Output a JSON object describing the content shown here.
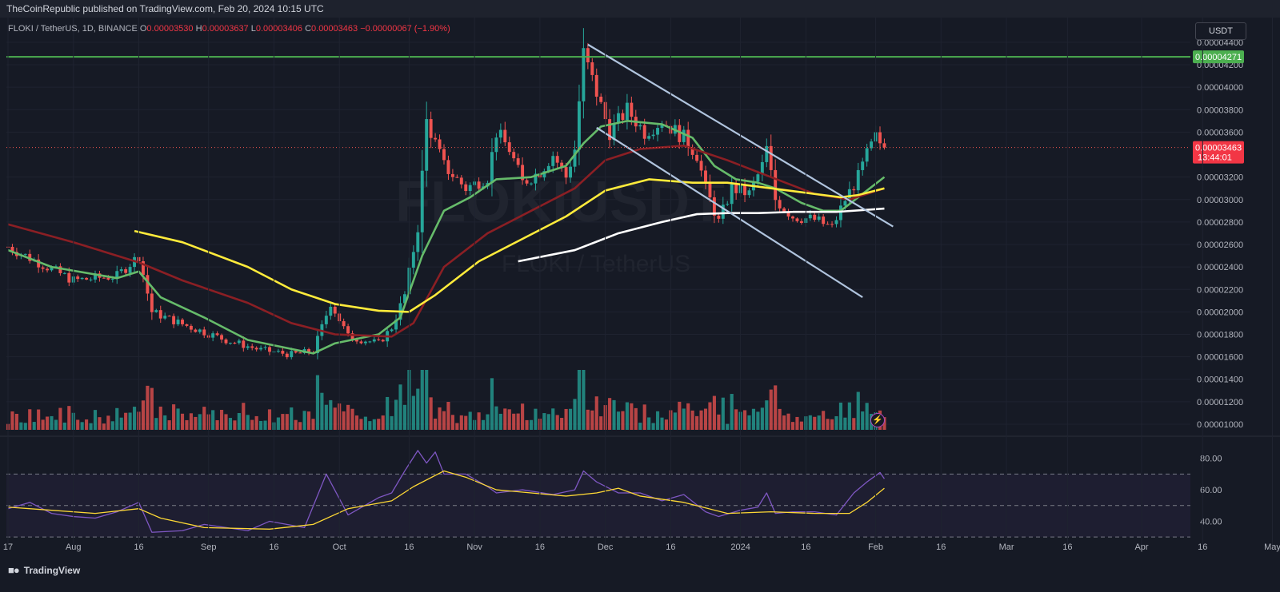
{
  "header": {
    "publisher_text": "TheCoinRepublic published on TradingView.com, Feb 20, 2024 10:15 UTC"
  },
  "symbol": {
    "pair": "FLOKI / TetherUS, 1D, BINANCE",
    "o_label": "O",
    "o_value": "0.00003530",
    "h_label": "H",
    "h_value": "0.00003637",
    "l_label": "L",
    "l_value": "0.00003406",
    "c_label": "C",
    "c_value": "0.00003463",
    "change": "−0.00000067 (−1.90%)"
  },
  "watermark": {
    "symbol": "FLOKIUSDT",
    "name": "FLOKI / TetherUS"
  },
  "currency": "USDT",
  "footer": {
    "logo_text": "TradingView"
  },
  "colors": {
    "background": "#161a25",
    "up": "#26a69a",
    "down": "#ef5350",
    "ema_fast": "#66bb6a",
    "ema_mid": "#8b1f24",
    "ma_yellow": "#ffeb3b",
    "ma_white": "#ffffff",
    "resistance": "#4caf50",
    "channel": "#b0c4de",
    "rsi": "#7e57c2",
    "rsi_ma": "#fdd835"
  },
  "chart_data": [
    {
      "type": "candlestick",
      "title": "FLOKI / TetherUS, 1D, BINANCE",
      "x_ticks": [
        "17",
        "Aug",
        "16",
        "Sep",
        "16",
        "Oct",
        "16",
        "Nov",
        "16",
        "Dec",
        "16",
        "2024",
        "16",
        "Feb",
        "16",
        "Mar",
        "16",
        "Apr",
        "16",
        "May"
      ],
      "y_ticks": [
        "0.00004400",
        "0.00004200",
        "0.00004000",
        "0.00003800",
        "0.00003600",
        "0.00003200",
        "0.00003000",
        "0.00002800",
        "0.00002600",
        "0.00002400",
        "0.00002200",
        "0.00002000",
        "0.00001800",
        "0.00001600",
        "0.00001400",
        "0.00001200",
        "0.00001000"
      ],
      "y_range": [
        9.5e-06,
        4.62e-05
      ],
      "price_tags": {
        "resistance": "0.00004271",
        "last": "0.00003463",
        "countdown": "13:44:01"
      },
      "resistance_level": 4.271e-05,
      "last_price": 3.463e-05,
      "close_path": [
        [
          0,
          2.58e-05
        ],
        [
          8,
          2.42e-05
        ],
        [
          15,
          2.28e-05
        ],
        [
          25,
          2.32e-05
        ],
        [
          30,
          2.5e-05
        ],
        [
          33,
          2e-05
        ],
        [
          40,
          1.89e-05
        ],
        [
          50,
          1.75e-05
        ],
        [
          58,
          1.66e-05
        ],
        [
          65,
          1.62e-05
        ],
        [
          70,
          1.65e-05
        ],
        [
          74,
          2.08e-05
        ],
        [
          78,
          1.78e-05
        ],
        [
          85,
          1.72e-05
        ],
        [
          88,
          1.86e-05
        ],
        [
          91,
          2.15e-05
        ],
        [
          94,
          2.75e-05
        ],
        [
          96,
          3.7e-05
        ],
        [
          98,
          3.5e-05
        ],
        [
          100,
          3.3e-05
        ],
        [
          105,
          3.1e-05
        ],
        [
          110,
          3.2e-05
        ],
        [
          112,
          3.6e-05
        ],
        [
          115,
          3.45e-05
        ],
        [
          118,
          3.15e-05
        ],
        [
          122,
          3.25e-05
        ],
        [
          125,
          3.4e-05
        ],
        [
          128,
          3.2e-05
        ],
        [
          130,
          3.45e-05
        ],
        [
          132,
          4.3e-05
        ],
        [
          135,
          3.95e-05
        ],
        [
          138,
          3.6e-05
        ],
        [
          142,
          3.8e-05
        ],
        [
          146,
          3.6e-05
        ],
        [
          150,
          3.7e-05
        ],
        [
          155,
          3.55e-05
        ],
        [
          158,
          3.4e-05
        ],
        [
          160,
          3.1e-05
        ],
        [
          163,
          2.8e-05
        ],
        [
          166,
          3.1e-05
        ],
        [
          170,
          3.05e-05
        ],
        [
          173,
          3.3e-05
        ],
        [
          174,
          3.45e-05
        ],
        [
          176,
          3e-05
        ],
        [
          180,
          2.85e-05
        ],
        [
          185,
          2.82e-05
        ],
        [
          189,
          2.75e-05
        ],
        [
          192,
          3e-05
        ],
        [
          195,
          3.2e-05
        ],
        [
          197,
          3.4e-05
        ],
        [
          199,
          3.55e-05
        ],
        [
          201,
          3.46e-05
        ]
      ],
      "series": [
        {
          "name": "",
          "color": "#66bb6a",
          "points": [
            [
              0,
              2.55e-05
            ],
            [
              10,
              2.4e-05
            ],
            [
              25,
              2.3e-05
            ],
            [
              30,
              2.36e-05
            ],
            [
              35,
              2.13e-05
            ],
            [
              45,
              1.95e-05
            ],
            [
              55,
              1.75e-05
            ],
            [
              70,
              1.63e-05
            ],
            [
              75,
              1.72e-05
            ],
            [
              85,
              1.8e-05
            ],
            [
              90,
              1.95e-05
            ],
            [
              95,
              2.5e-05
            ],
            [
              100,
              2.9e-05
            ],
            [
              106,
              3.02e-05
            ],
            [
              112,
              3.18e-05
            ],
            [
              120,
              3.2e-05
            ],
            [
              128,
              3.3e-05
            ],
            [
              132,
              3.5e-05
            ],
            [
              136,
              3.65e-05
            ],
            [
              142,
              3.7e-05
            ],
            [
              150,
              3.67e-05
            ],
            [
              157,
              3.55e-05
            ],
            [
              162,
              3.3e-05
            ],
            [
              167,
              3.18e-05
            ],
            [
              172,
              3.15e-05
            ],
            [
              176,
              3.1e-05
            ],
            [
              182,
              2.97e-05
            ],
            [
              187,
              2.9e-05
            ],
            [
              191,
              2.9e-05
            ],
            [
              195,
              3.02e-05
            ],
            [
              201,
              3.2e-05
            ]
          ]
        },
        {
          "name": "",
          "color": "#8b1f24",
          "points": [
            [
              0,
              2.78e-05
            ],
            [
              15,
              2.62e-05
            ],
            [
              30,
              2.44e-05
            ],
            [
              40,
              2.28e-05
            ],
            [
              55,
              2.08e-05
            ],
            [
              65,
              1.9e-05
            ],
            [
              75,
              1.8e-05
            ],
            [
              88,
              1.78e-05
            ],
            [
              93,
              1.9e-05
            ],
            [
              100,
              2.4e-05
            ],
            [
              110,
              2.7e-05
            ],
            [
              120,
              2.9e-05
            ],
            [
              130,
              3.1e-05
            ],
            [
              137,
              3.35e-05
            ],
            [
              145,
              3.45e-05
            ],
            [
              155,
              3.48e-05
            ],
            [
              165,
              3.35e-05
            ],
            [
              175,
              3.2e-05
            ],
            [
              185,
              3.05e-05
            ],
            [
              193,
              3e-05
            ],
            [
              201,
              3.1e-05
            ]
          ]
        },
        {
          "name": "",
          "color": "#ffeb3b",
          "points": [
            [
              29,
              2.72e-05
            ],
            [
              40,
              2.62e-05
            ],
            [
              55,
              2.4e-05
            ],
            [
              65,
              2.2e-05
            ],
            [
              75,
              2.07e-05
            ],
            [
              85,
              2.01e-05
            ],
            [
              92,
              2e-05
            ],
            [
              98,
              2.15e-05
            ],
            [
              108,
              2.45e-05
            ],
            [
              118,
              2.65e-05
            ],
            [
              128,
              2.85e-05
            ],
            [
              137,
              3.08e-05
            ],
            [
              147,
              3.18e-05
            ],
            [
              157,
              3.15e-05
            ],
            [
              165,
              3.15e-05
            ],
            [
              175,
              3.1e-05
            ],
            [
              185,
              3.05e-05
            ],
            [
              191,
              3.02e-05
            ],
            [
              195,
              3.04e-05
            ],
            [
              201,
              3.1e-05
            ]
          ]
        },
        {
          "name": "",
          "color": "#ffffff",
          "points": [
            [
              117,
              2.45e-05
            ],
            [
              130,
              2.55e-05
            ],
            [
              140,
              2.7e-05
            ],
            [
              150,
              2.8e-05
            ],
            [
              158,
              2.87e-05
            ],
            [
              165,
              2.88e-05
            ],
            [
              172,
              2.88e-05
            ],
            [
              180,
              2.89e-05
            ],
            [
              190,
              2.89e-05
            ],
            [
              201,
              2.92e-05
            ]
          ]
        }
      ],
      "trendlines": [
        {
          "from": [
            133,
            4.38e-05
          ],
          "to": [
            203,
            2.76e-05
          ]
        },
        {
          "from": [
            135,
            3.64e-05
          ],
          "to": [
            196,
            2.13e-05
          ]
        }
      ]
    },
    {
      "type": "line",
      "title": "",
      "y_ticks": [
        "80.00",
        "60.00",
        "40.00"
      ],
      "y_range": [
        25,
        90
      ],
      "bands": [
        30,
        50,
        70
      ],
      "series": [
        {
          "name": "",
          "color": "#7e57c2",
          "points": [
            [
              0,
              48
            ],
            [
              5,
              52
            ],
            [
              10,
              45
            ],
            [
              15,
              43
            ],
            [
              20,
              42
            ],
            [
              25,
              46
            ],
            [
              30,
              52
            ],
            [
              33,
              33
            ],
            [
              40,
              34
            ],
            [
              45,
              38
            ],
            [
              55,
              34
            ],
            [
              60,
              40
            ],
            [
              68,
              36
            ],
            [
              73,
              70
            ],
            [
              78,
              44
            ],
            [
              85,
              55
            ],
            [
              88,
              58
            ],
            [
              91,
              72
            ],
            [
              94,
              85
            ],
            [
              96,
              77
            ],
            [
              98,
              84
            ],
            [
              100,
              70
            ],
            [
              105,
              70
            ],
            [
              110,
              62
            ],
            [
              112,
              58
            ],
            [
              118,
              60
            ],
            [
              125,
              57
            ],
            [
              130,
              60
            ],
            [
              132,
              72
            ],
            [
              135,
              65
            ],
            [
              140,
              58
            ],
            [
              145,
              58
            ],
            [
              150,
              53
            ],
            [
              155,
              57
            ],
            [
              160,
              46
            ],
            [
              163,
              43
            ],
            [
              168,
              47
            ],
            [
              172,
              49
            ],
            [
              174,
              58
            ],
            [
              176,
              45
            ],
            [
              180,
              46
            ],
            [
              185,
              46
            ],
            [
              190,
              44
            ],
            [
              194,
              58
            ],
            [
              197,
              65
            ],
            [
              200,
              71
            ],
            [
              201,
              67
            ]
          ]
        },
        {
          "name": "",
          "color": "#fdd835",
          "points": [
            [
              0,
              49
            ],
            [
              10,
              47
            ],
            [
              20,
              45
            ],
            [
              30,
              48
            ],
            [
              35,
              42
            ],
            [
              45,
              36
            ],
            [
              60,
              35
            ],
            [
              70,
              38
            ],
            [
              78,
              48
            ],
            [
              88,
              53
            ],
            [
              93,
              62
            ],
            [
              100,
              72
            ],
            [
              105,
              68
            ],
            [
              112,
              60
            ],
            [
              120,
              58
            ],
            [
              128,
              56
            ],
            [
              135,
              58
            ],
            [
              140,
              61
            ],
            [
              145,
              56
            ],
            [
              155,
              52
            ],
            [
              165,
              45
            ],
            [
              175,
              46
            ],
            [
              185,
              45
            ],
            [
              193,
              45
            ],
            [
              197,
              52
            ],
            [
              201,
              61
            ]
          ]
        }
      ]
    }
  ]
}
